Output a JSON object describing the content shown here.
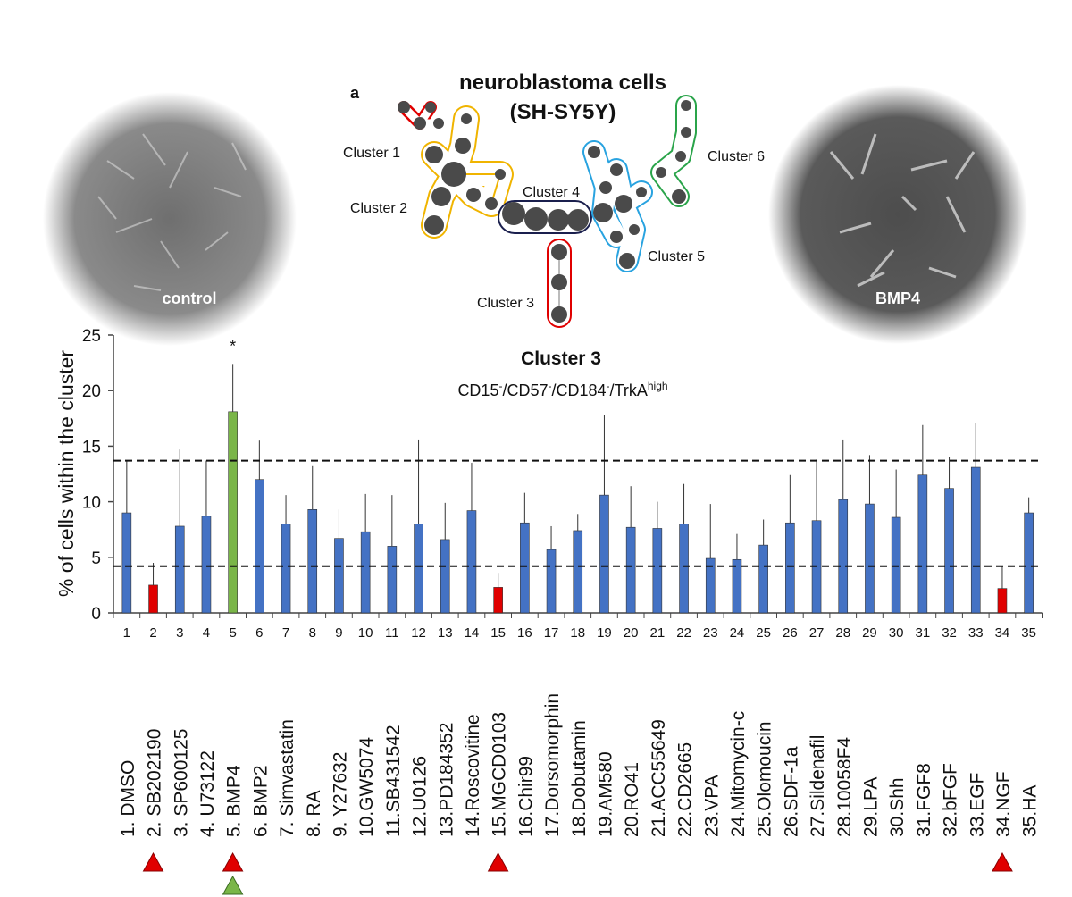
{
  "figure": {
    "panel_label": "a",
    "title_lines": [
      "neuroblastoma cells",
      "(SH-SY5Y)"
    ],
    "clusters": [
      "Cluster 1",
      "Cluster 2",
      "Cluster 3",
      "Cluster 4",
      "Cluster 5",
      "Cluster 6"
    ],
    "images": [
      "control",
      "BMP4"
    ]
  },
  "chart_data": {
    "type": "bar",
    "title": "Cluster 3",
    "subtitle_parts": [
      "CD15",
      "-",
      "/CD57",
      "-",
      "/CD184",
      "-",
      "/TrkA",
      "high"
    ],
    "y_label": "% of cells within the cluster",
    "categories": [
      "1",
      "2",
      "3",
      "4",
      "5",
      "6",
      "7",
      "8",
      "9",
      "10",
      "11",
      "12",
      "13",
      "14",
      "15",
      "16",
      "17",
      "18",
      "19",
      "20",
      "21",
      "22",
      "23",
      "24",
      "25",
      "26",
      "27",
      "28",
      "29",
      "30",
      "31",
      "32",
      "33",
      "34",
      "35"
    ],
    "treatments": [
      "1. DMSO",
      "2. SB202190",
      "3. SP600125",
      "4. U73122",
      "5. BMP4",
      "6. BMP2",
      "7. Simvastatin",
      "8. RA",
      "9. Y27632",
      "10.GW5074",
      "11.SB431542",
      "12.U0126",
      "13.PD184352",
      "14.Roscovitine",
      "15.MGCD0103",
      "16.Chir99",
      "17.Dorsomorphin",
      "18.Dobutamin",
      "19.AM580",
      "20.RO41",
      "21.ACC55649",
      "22.CD2665",
      "23.VPA",
      "24.Mitomycin-c",
      "25.Olomoucin",
      "26.SDF-1a",
      "27.Sildenafil",
      "28.10058F4",
      "29.LPA",
      "30.Shh",
      "31.FGF8",
      "32.bFGF",
      "33.EGF",
      "34.NGF",
      "35.HA"
    ],
    "values": [
      9.0,
      2.5,
      7.8,
      8.7,
      18.1,
      12.0,
      8.0,
      9.3,
      6.7,
      7.3,
      6.0,
      8.0,
      6.6,
      9.2,
      2.3,
      8.1,
      5.7,
      7.4,
      10.6,
      7.7,
      7.6,
      8.0,
      4.9,
      4.8,
      6.1,
      8.1,
      8.3,
      10.2,
      9.8,
      8.6,
      12.4,
      11.2,
      13.1,
      2.2,
      9.0
    ],
    "errors": [
      4.7,
      2.0,
      6.9,
      5.0,
      4.3,
      3.5,
      2.6,
      3.9,
      2.6,
      3.4,
      4.6,
      7.6,
      3.3,
      4.3,
      1.3,
      2.7,
      2.1,
      1.5,
      7.2,
      3.7,
      2.4,
      3.6,
      4.9,
      2.3,
      2.3,
      4.3,
      5.5,
      5.4,
      4.4,
      4.3,
      4.5,
      2.8,
      4.0,
      2.0,
      1.4
    ],
    "colors": [
      "#4472c4",
      "#e00000",
      "#4472c4",
      "#4472c4",
      "#7ab648",
      "#4472c4",
      "#4472c4",
      "#4472c4",
      "#4472c4",
      "#4472c4",
      "#4472c4",
      "#4472c4",
      "#4472c4",
      "#4472c4",
      "#e00000",
      "#4472c4",
      "#4472c4",
      "#4472c4",
      "#4472c4",
      "#4472c4",
      "#4472c4",
      "#4472c4",
      "#4472c4",
      "#4472c4",
      "#4472c4",
      "#4472c4",
      "#4472c4",
      "#4472c4",
      "#4472c4",
      "#4472c4",
      "#4472c4",
      "#4472c4",
      "#4472c4",
      "#e00000",
      "#4472c4"
    ],
    "reference_lines": [
      13.7,
      4.2
    ],
    "annotations": [
      {
        "text": "*",
        "x": "5"
      }
    ],
    "ylim": [
      0,
      25
    ],
    "yticks": [
      0,
      5,
      10,
      15,
      20,
      25
    ],
    "grid": false
  }
}
